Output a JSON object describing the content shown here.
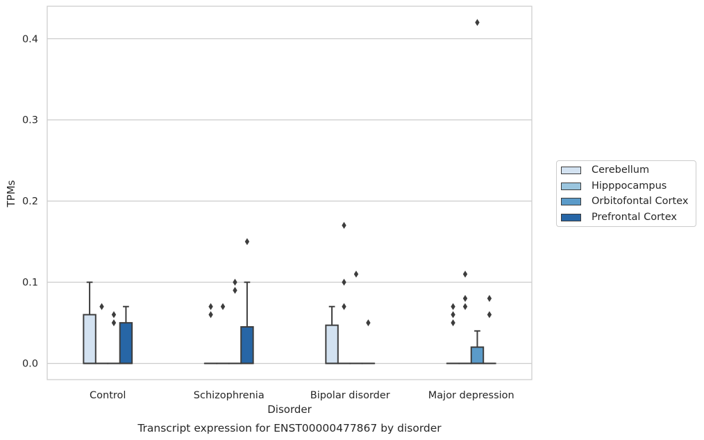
{
  "chart_data": {
    "type": "box",
    "title": "Transcript expression for ENST00000477867 by disorder",
    "xlabel": "Disorder",
    "ylabel": "TPMs",
    "ylim": [
      -0.02,
      0.44
    ],
    "yticks": [
      0.0,
      0.1,
      0.2,
      0.3,
      0.4
    ],
    "ytick_labels": [
      "0.0",
      "0.1",
      "0.2",
      "0.3",
      "0.4"
    ],
    "grid": "horizontal",
    "legend_position": "right",
    "categories": [
      "Control",
      "Schizophrenia",
      "Bipolar disorder",
      "Major depression"
    ],
    "series": [
      {
        "name": "Cerebellum",
        "color": "#d3e2f1",
        "boxes": [
          {
            "q1": 0.0,
            "median": 0.0,
            "q3": 0.06,
            "whisker_low": 0.0,
            "whisker_high": 0.1,
            "outliers": []
          },
          {
            "q1": 0.0,
            "median": 0.0,
            "q3": 0.0,
            "whisker_low": 0.0,
            "whisker_high": 0.0,
            "outliers": [
              0.07,
              0.06
            ]
          },
          {
            "q1": 0.0,
            "median": 0.0,
            "q3": 0.047,
            "whisker_low": 0.0,
            "whisker_high": 0.07,
            "outliers": []
          },
          {
            "q1": 0.0,
            "median": 0.0,
            "q3": 0.0,
            "whisker_low": 0.0,
            "whisker_high": 0.0,
            "outliers": [
              0.07,
              0.06,
              0.05
            ]
          }
        ]
      },
      {
        "name": "Hipppocampus",
        "color": "#9ac5de",
        "boxes": [
          {
            "q1": 0.0,
            "median": 0.0,
            "q3": 0.0,
            "whisker_low": 0.0,
            "whisker_high": 0.0,
            "outliers": [
              0.07
            ]
          },
          {
            "q1": 0.0,
            "median": 0.0,
            "q3": 0.0,
            "whisker_low": 0.0,
            "whisker_high": 0.0,
            "outliers": [
              0.07
            ]
          },
          {
            "q1": 0.0,
            "median": 0.0,
            "q3": 0.0,
            "whisker_low": 0.0,
            "whisker_high": 0.0,
            "outliers": [
              0.17,
              0.1,
              0.07
            ]
          },
          {
            "q1": 0.0,
            "median": 0.0,
            "q3": 0.0,
            "whisker_low": 0.0,
            "whisker_high": 0.0,
            "outliers": [
              0.11,
              0.08,
              0.07
            ]
          }
        ]
      },
      {
        "name": "Orbitofontal Cortex",
        "color": "#5b9bc9",
        "boxes": [
          {
            "q1": 0.0,
            "median": 0.0,
            "q3": 0.0,
            "whisker_low": 0.0,
            "whisker_high": 0.0,
            "outliers": [
              0.06,
              0.05
            ]
          },
          {
            "q1": 0.0,
            "median": 0.0,
            "q3": 0.0,
            "whisker_low": 0.0,
            "whisker_high": 0.0,
            "outliers": [
              0.1,
              0.09
            ]
          },
          {
            "q1": 0.0,
            "median": 0.0,
            "q3": 0.0,
            "whisker_low": 0.0,
            "whisker_high": 0.0,
            "outliers": [
              0.11
            ]
          },
          {
            "q1": 0.0,
            "median": 0.0,
            "q3": 0.02,
            "whisker_low": 0.0,
            "whisker_high": 0.04,
            "outliers": [
              0.42
            ]
          }
        ]
      },
      {
        "name": "Prefrontal Cortex",
        "color": "#2766a6",
        "boxes": [
          {
            "q1": 0.0,
            "median": 0.0,
            "q3": 0.05,
            "whisker_low": 0.0,
            "whisker_high": 0.07,
            "outliers": []
          },
          {
            "q1": 0.0,
            "median": 0.0,
            "q3": 0.045,
            "whisker_low": 0.0,
            "whisker_high": 0.1,
            "outliers": [
              0.15
            ]
          },
          {
            "q1": 0.0,
            "median": 0.0,
            "q3": 0.0,
            "whisker_low": 0.0,
            "whisker_high": 0.0,
            "outliers": [
              0.05
            ]
          },
          {
            "q1": 0.0,
            "median": 0.0,
            "q3": 0.0,
            "whisker_low": 0.0,
            "whisker_high": 0.0,
            "outliers": [
              0.08,
              0.06
            ]
          }
        ]
      }
    ]
  }
}
